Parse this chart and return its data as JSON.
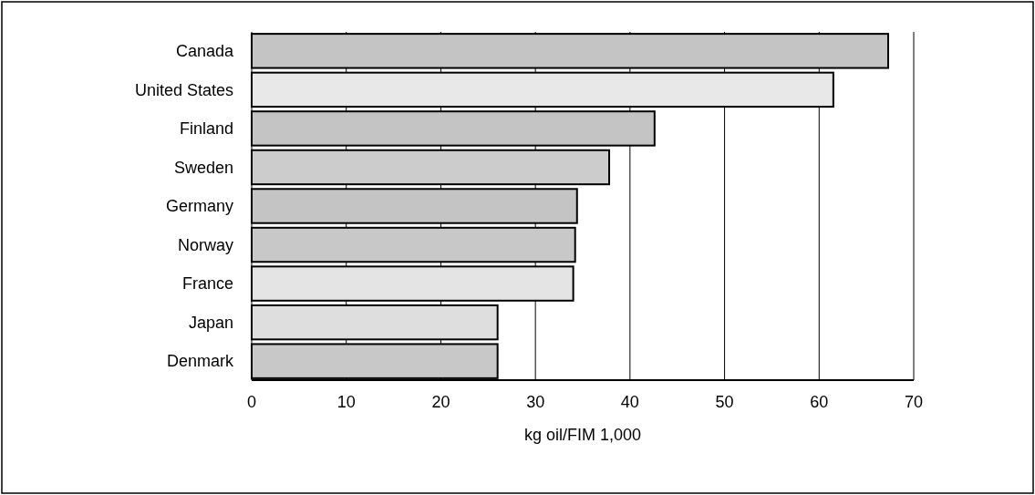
{
  "chart_data": {
    "type": "bar",
    "orientation": "horizontal",
    "xlabel": "kg oil/FIM 1,000",
    "categories": [
      "Canada",
      "United States",
      "Finland",
      "Sweden",
      "Germany",
      "Norway",
      "France",
      "Japan",
      "Denmark"
    ],
    "values": [
      67.3,
      61.5,
      42.6,
      37.8,
      34.4,
      34.2,
      34.0,
      26.0,
      26.0
    ],
    "colors": [
      "#c4c4c4",
      "#e8e8e8",
      "#c4c4c4",
      "#cccccc",
      "#c4c4c4",
      "#c8c8c8",
      "#e4e4e4",
      "#dedede",
      "#c8c8c8"
    ],
    "xlim": [
      0,
      70
    ],
    "xticks": [
      0,
      10,
      20,
      30,
      40,
      50,
      60,
      70
    ],
    "grid": "x"
  }
}
